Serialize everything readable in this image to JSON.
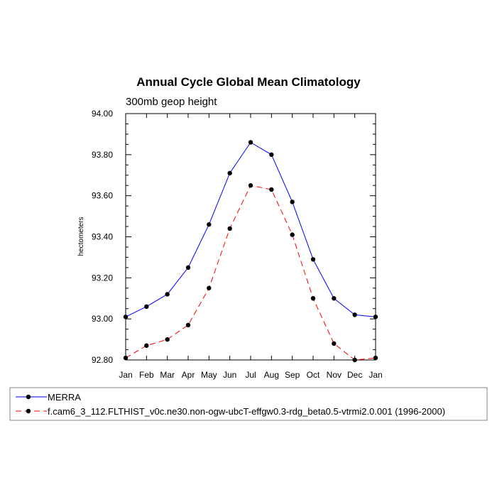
{
  "chart_data": {
    "type": "line",
    "title": "Annual Cycle Global Mean Climatology",
    "subtitle": "300mb geop height",
    "xlabel": "",
    "ylabel": "hectometers",
    "categories": [
      "Jan",
      "Feb",
      "Mar",
      "Apr",
      "May",
      "Jun",
      "Jul",
      "Aug",
      "Sep",
      "Oct",
      "Nov",
      "Dec",
      "Jan"
    ],
    "ylim": [
      92.8,
      94.0
    ],
    "yticks": [
      "92.80",
      "93.00",
      "93.20",
      "93.40",
      "93.60",
      "93.80",
      "94.00"
    ],
    "ytick_values": [
      92.8,
      93.0,
      93.2,
      93.4,
      93.6,
      93.8,
      94.0
    ],
    "series": [
      {
        "name": "MERRA",
        "color": "#0000ff",
        "style": "solid",
        "values": [
          93.01,
          93.06,
          93.12,
          93.25,
          93.46,
          93.71,
          93.86,
          93.8,
          93.57,
          93.29,
          93.1,
          93.02,
          93.01
        ]
      },
      {
        "name": "f.cam6_3_112.FLTHIST_v0c.ne30.non-ogw-ubcT-effgw0.3-rdg_beta0.5-vtrmi2.0.001 (1996-2000)",
        "color": "#ff0000",
        "style": "dashed",
        "values": [
          92.81,
          92.87,
          92.9,
          92.97,
          93.15,
          93.44,
          93.65,
          93.63,
          93.41,
          93.1,
          92.88,
          92.8,
          92.81
        ]
      }
    ]
  }
}
